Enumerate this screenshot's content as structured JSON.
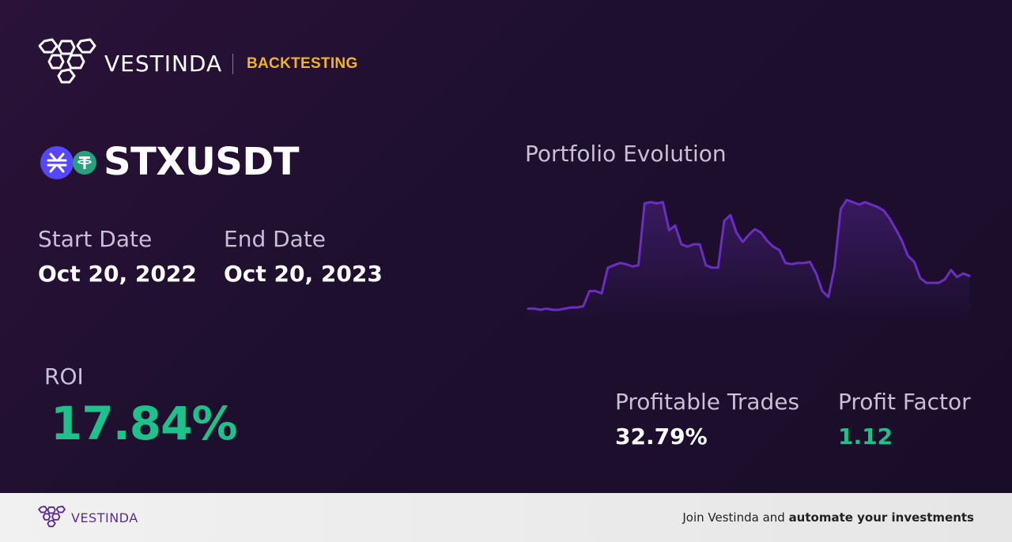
{
  "header": {
    "brand": "VESTINDA",
    "section": "BACKTESTING"
  },
  "pair": {
    "symbol": "STXUSDT",
    "base_icon": "stacks-coin-icon",
    "quote_icon": "tether-coin-icon"
  },
  "dates": {
    "start_label": "Start Date",
    "start_value": "Oct 20, 2022",
    "end_label": "End Date",
    "end_value": "Oct 20, 2023"
  },
  "roi": {
    "label": "ROI",
    "value": "17.84%"
  },
  "chart": {
    "title": "Portfolio Evolution"
  },
  "chart_data": {
    "type": "area",
    "title": "Portfolio Evolution",
    "xlabel": "",
    "ylabel": "",
    "values": [
      5,
      5,
      4,
      5,
      4,
      4,
      5,
      6,
      6,
      7,
      20,
      20,
      18,
      40,
      42,
      44,
      43,
      41,
      42,
      95,
      96,
      95,
      96,
      72,
      76,
      60,
      58,
      60,
      60,
      42,
      40,
      40,
      80,
      85,
      70,
      62,
      68,
      73,
      70,
      63,
      58,
      55,
      44,
      43,
      44,
      44,
      45,
      35,
      20,
      15,
      40,
      90,
      98,
      96,
      94,
      96,
      94,
      92,
      89,
      82,
      73,
      63,
      50,
      45,
      31,
      27,
      27,
      27,
      30,
      38,
      32,
      35,
      33
    ],
    "ylim": [
      0,
      100
    ],
    "grid": false,
    "colors": {
      "line": "#6a2fc0"
    }
  },
  "stats": {
    "profitable_trades_label": "Profitable Trades",
    "profitable_trades_value": "32.79%",
    "profit_factor_label": "Profit Factor",
    "profit_factor_value": "1.12"
  },
  "footer": {
    "brand": "VESTINDA",
    "cta_prefix": "Join Vestinda and ",
    "cta_bold": "automate your investments"
  },
  "colors": {
    "accent_gold": "#f0b429",
    "positive_green": "#1cc28a",
    "chart_line": "#6a2fc0",
    "footer_brand": "#5b2d8e"
  }
}
